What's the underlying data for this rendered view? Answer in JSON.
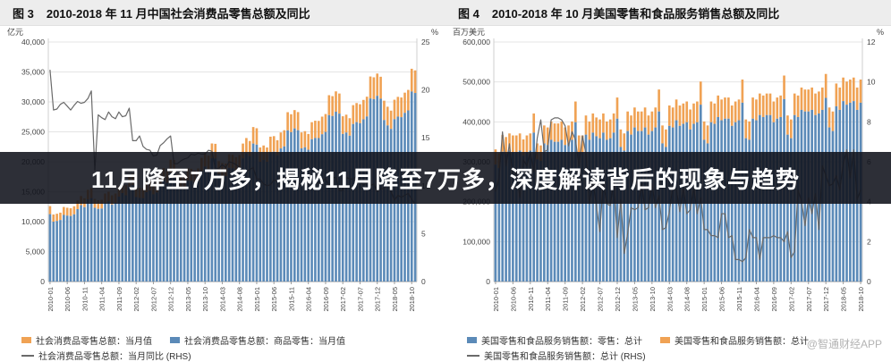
{
  "page": {
    "background": "#ffffff",
    "watermark": "@智通财经APP"
  },
  "overlay": {
    "text": "11月降至7万多，揭秘11月降至7万多，深度解读背后的现象与趋势",
    "bg": "#10121b",
    "color": "#ffffff"
  },
  "colors": {
    "bar_blue": "#5b8ab8",
    "bar_orange": "#f0a254",
    "line_gray": "#6a6a6a"
  },
  "chart_data": [
    {
      "type": "bar",
      "fig_label": "图 3",
      "title": "2010-2018 年 11 月中国社会消费品零售总额及同比",
      "left_axis": {
        "unit": "亿元",
        "min": 0,
        "max": 40000,
        "step": 5000
      },
      "right_axis": {
        "unit": "%",
        "min": 0,
        "max": 25,
        "step": 5
      },
      "x_start": "2010-01",
      "n_months": 107,
      "x_tick_every": 5,
      "x_tick_labels_sample": [
        "2010-01",
        "2010-06",
        "2010-11",
        "2011-04",
        "2011-09",
        "2012-02",
        "2012-07",
        "2012-12",
        "2013-05",
        "2013-10",
        "2014-03",
        "2014-08",
        "2015-01",
        "2015-06",
        "2015-11",
        "2016-04",
        "2016-09",
        "2017-02",
        "2017-07",
        "2017-12",
        "2018-05",
        "2018-10"
      ],
      "series": [
        {
          "name": "社会消费品零售总额：当月值",
          "role": "total",
          "color": "#f0a254",
          "axis": "left"
        },
        {
          "name": "社会消费品零售总额：商品零售：当月值",
          "role": "part",
          "color": "#5b8ab8",
          "axis": "left"
        },
        {
          "name": "社会消费品零售总额：当月同比 (RHS)",
          "role": "line",
          "color": "#6a6a6a",
          "axis": "right"
        }
      ],
      "values": {
        "total": [
          12600,
          11200,
          11322,
          11510,
          12455,
          12329,
          12253,
          12570,
          13536,
          14285,
          13911,
          15329,
          15600,
          13800,
          13588,
          13649,
          14697,
          15002,
          14408,
          14705,
          15865,
          16546,
          16129,
          17740,
          18000,
          15800,
          15650,
          15603,
          16715,
          16985,
          16315,
          16659,
          18227,
          18934,
          18477,
          20334,
          20300,
          17900,
          17641,
          17600,
          18886,
          18827,
          18513,
          18886,
          20653,
          21491,
          21012,
          23060,
          23000,
          20100,
          19801,
          19701,
          21250,
          21166,
          20776,
          21134,
          23042,
          23967,
          23474,
          25801,
          25600,
          22400,
          22723,
          22389,
          24195,
          24280,
          23600,
          24893,
          25271,
          28279,
          27938,
          28635,
          28300,
          24900,
          25114,
          24646,
          26611,
          26857,
          26827,
          27540,
          27976,
          31119,
          30959,
          31757,
          31400,
          27600,
          27864,
          27279,
          29459,
          29808,
          29610,
          30330,
          30870,
          34241,
          34108,
          34734,
          34200,
          30200,
          29194,
          28542,
          30359,
          30842,
          30734,
          31542,
          32005,
          35534,
          35260
        ],
        "part": [
          11252,
          10002,
          10111,
          10279,
          11122,
          11010,
          10942,
          11225,
          12088,
          12757,
          12423,
          13689,
          13931,
          12323,
          12134,
          12189,
          13124,
          13397,
          12866,
          13132,
          14167,
          14776,
          14403,
          15842,
          16074,
          14109,
          13975,
          13933,
          14926,
          15168,
          14569,
          14876,
          16277,
          16908,
          16500,
          18158,
          18128,
          15985,
          15753,
          15717,
          16865,
          16812,
          16532,
          16865,
          18443,
          19191,
          18764,
          20593,
          20539,
          17949,
          17682,
          17593,
          18976,
          18901,
          18553,
          18873,
          20577,
          21403,
          20962,
          23040,
          22861,
          20003,
          20292,
          19993,
          21606,
          21682,
          21075,
          22229,
          22567,
          25253,
          24949,
          25571,
          25272,
          22236,
          22427,
          22009,
          23764,
          23983,
          23957,
          24593,
          24983,
          27789,
          27646,
          28359,
          28040,
          24647,
          24883,
          24360,
          26307,
          26619,
          26442,
          27085,
          27567,
          30577,
          30458,
          31017,
          30541,
          26969,
          26070,
          25488,
          27111,
          27542,
          27446,
          28167,
          28580,
          31730,
          31486
        ],
        "line": [
          22.1,
          17.9,
          18.0,
          18.5,
          18.7,
          18.3,
          17.9,
          18.4,
          18.8,
          18.6,
          18.7,
          19.1,
          19.9,
          11.6,
          17.4,
          17.1,
          16.9,
          17.7,
          17.2,
          17.0,
          17.7,
          17.2,
          17.3,
          18.1,
          14.7,
          14.7,
          15.2,
          14.1,
          13.8,
          13.7,
          13.1,
          13.2,
          14.2,
          14.5,
          14.9,
          15.2,
          12.3,
          12.3,
          12.6,
          12.8,
          12.9,
          13.3,
          13.2,
          13.4,
          13.3,
          13.3,
          13.7,
          13.6,
          11.8,
          11.8,
          12.2,
          11.9,
          12.5,
          12.4,
          12.2,
          11.9,
          11.6,
          11.5,
          11.7,
          11.9,
          10.7,
          10.7,
          10.2,
          10.0,
          10.1,
          10.6,
          10.5,
          10.8,
          10.9,
          11.0,
          11.2,
          11.1,
          10.2,
          10.2,
          10.5,
          10.1,
          10.0,
          10.6,
          10.2,
          10.6,
          10.7,
          10.0,
          10.8,
          10.9,
          9.5,
          9.5,
          10.9,
          10.7,
          10.7,
          11.0,
          10.4,
          10.1,
          10.3,
          10.0,
          10.2,
          9.4,
          9.7,
          9.7,
          10.1,
          9.4,
          8.5,
          9.0,
          8.8,
          9.0,
          9.2,
          8.6,
          8.1
        ]
      }
    },
    {
      "type": "bar",
      "fig_label": "图 4",
      "title": "2010-2018 年 10 月美国零售和食品服务销售总额及同比",
      "left_axis": {
        "unit": "百万美元",
        "min": 0,
        "max": 600000,
        "step": 100000
      },
      "right_axis": {
        "unit": "%",
        "min": 0,
        "max": 12,
        "step": 2
      },
      "x_start": "2010-01",
      "n_months": 106,
      "x_tick_every": 5,
      "x_tick_labels_sample": [
        "2010-01",
        "2010-06",
        "2010-11",
        "2011-04",
        "2011-09",
        "2012-02",
        "2012-07",
        "2012-12",
        "2013-05",
        "2013-10",
        "2014-03",
        "2014-08",
        "2015-01",
        "2015-06",
        "2015-11",
        "2016-04",
        "2016-09",
        "2017-02",
        "2017-07",
        "2017-12",
        "2018-05",
        "2018-10"
      ],
      "series": [
        {
          "name": "美国零售和食品服务销售额：零售：总计",
          "role": "part",
          "color": "#5b8ab8",
          "axis": "left"
        },
        {
          "name": "美国零售和食品服务销售额：总计",
          "role": "total",
          "color": "#f0a254",
          "axis": "left"
        },
        {
          "name": "美国零售和食品服务销售额：总计 (RHS)",
          "role": "line",
          "color": "#6a6a6a",
          "axis": "right"
        }
      ],
      "values": {
        "total": [
          331000,
          321000,
          367000,
          362000,
          371000,
          366000,
          366000,
          371000,
          356000,
          366000,
          371000,
          421000,
          346000,
          341000,
          391000,
          386000,
          401000,
          396000,
          396000,
          401000,
          386000,
          391000,
          401000,
          451000,
          366000,
          366000,
          416000,
          401000,
          421000,
          411000,
          406000,
          421000,
          401000,
          406000,
          421000,
          461000,
          381000,
          371000,
          426000,
          416000,
          436000,
          426000,
          426000,
          436000,
          416000,
          426000,
          436000,
          481000,
          391000,
          381000,
          441000,
          436000,
          456000,
          441000,
          446000,
          451000,
          431000,
          446000,
          451000,
          501000,
          401000,
          391000,
          451000,
          446000,
          466000,
          456000,
          461000,
          461000,
          441000,
          451000,
          456000,
          506000,
          406000,
          401000,
          461000,
          456000,
          471000,
          466000,
          471000,
          471000,
          451000,
          461000,
          466000,
          516000,
          416000,
          406000,
          471000,
          466000,
          486000,
          481000,
          481000,
          486000,
          471000,
          476000,
          486000,
          520000,
          436000,
          426000,
          496000,
          486000,
          511000,
          501000,
          506000,
          511000,
          486000,
          506000
        ],
        "part": [
          293000,
          284000,
          325000,
          320000,
          328000,
          324000,
          324000,
          328000,
          315000,
          324000,
          328000,
          373000,
          306000,
          302000,
          346000,
          342000,
          355000,
          350000,
          350000,
          355000,
          342000,
          346000,
          355000,
          399000,
          324000,
          324000,
          368000,
          355000,
          373000,
          364000,
          359000,
          373000,
          355000,
          359000,
          373000,
          408000,
          337000,
          328000,
          377000,
          368000,
          386000,
          377000,
          377000,
          386000,
          368000,
          377000,
          386000,
          426000,
          346000,
          337000,
          390000,
          386000,
          404000,
          390000,
          395000,
          399000,
          381000,
          395000,
          399000,
          443000,
          355000,
          346000,
          399000,
          395000,
          412000,
          404000,
          408000,
          408000,
          390000,
          399000,
          404000,
          448000,
          359000,
          355000,
          408000,
          404000,
          417000,
          412000,
          417000,
          417000,
          399000,
          408000,
          412000,
          457000,
          368000,
          359000,
          417000,
          412000,
          430000,
          426000,
          426000,
          430000,
          417000,
          421000,
          430000,
          460000,
          386000,
          377000,
          439000,
          430000,
          452000,
          443000,
          448000,
          452000,
          430000,
          448000
        ],
        "line": [
          4.5,
          5.2,
          7.5,
          5.8,
          6.9,
          5.2,
          5.5,
          4.2,
          6.1,
          5.8,
          6.5,
          5.5,
          7.2,
          8.1,
          6.5,
          6.6,
          8.1,
          8.2,
          8.2,
          8.1,
          7.8,
          6.8,
          7.5,
          7.1,
          5.8,
          7.3,
          6.4,
          3.9,
          5.0,
          3.8,
          2.5,
          5.0,
          3.9,
          3.8,
          5.0,
          2.2,
          4.1,
          1.4,
          2.4,
          3.7,
          3.6,
          3.7,
          4.9,
          3.6,
          3.7,
          4.9,
          3.7,
          4.3,
          2.6,
          2.7,
          3.5,
          4.8,
          4.6,
          3.5,
          4.7,
          3.4,
          3.6,
          4.7,
          3.4,
          4.2,
          2.6,
          2.6,
          2.3,
          2.3,
          2.2,
          3.4,
          3.4,
          2.2,
          2.3,
          1.1,
          1.1,
          1.0,
          1.2,
          2.6,
          2.2,
          2.2,
          1.1,
          2.2,
          2.2,
          2.2,
          2.3,
          2.2,
          2.2,
          2.0,
          2.5,
          1.2,
          1.5,
          4.6,
          4.0,
          2.8,
          4.2,
          3.4,
          4.4,
          2.6,
          5.8,
          5.3,
          4.8,
          4.9,
          5.3,
          4.6,
          5.9,
          6.6,
          5.2,
          6.6,
          4.1,
          4.6
        ]
      }
    }
  ]
}
